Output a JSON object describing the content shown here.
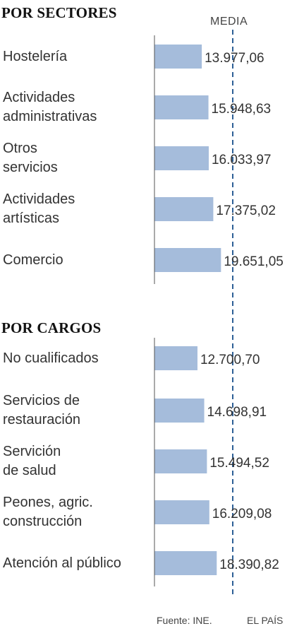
{
  "chart_data": [
    {
      "type": "bar",
      "orientation": "horizontal",
      "title": "POR SECTORES",
      "reference_line_label": "MEDIA",
      "categories": [
        "Hostelería",
        "Actividades\nadministrativas",
        "Otros\nservicios",
        "Actividades\nartísticas",
        "Comercio"
      ],
      "values": [
        13977.06,
        15948.63,
        16033.97,
        17375.02,
        19651.05
      ],
      "value_labels": [
        "13.977,06",
        "15.948,63",
        "16.033,97",
        "17.375,02",
        "19.651,05"
      ]
    },
    {
      "type": "bar",
      "orientation": "horizontal",
      "title": "POR CARGOS",
      "categories": [
        "No cualificados",
        "Servicios de\nrestauración",
        "Servición\nde salud",
        "Peones, agric.\nconstrucción",
        "Atención al público"
      ],
      "values": [
        12700.7,
        14698.91,
        15494.52,
        16209.08,
        18390.82
      ],
      "value_labels": [
        "12.700,70",
        "14.698,91",
        "15.494,52",
        "16.209,08",
        "18.390,82"
      ]
    }
  ],
  "footer": {
    "source": "Fuente: INE.",
    "brand": "EL PAÍS"
  },
  "colors": {
    "bar": "#a5bcdb",
    "media_line": "#2d5f96",
    "axis": "#555555"
  }
}
